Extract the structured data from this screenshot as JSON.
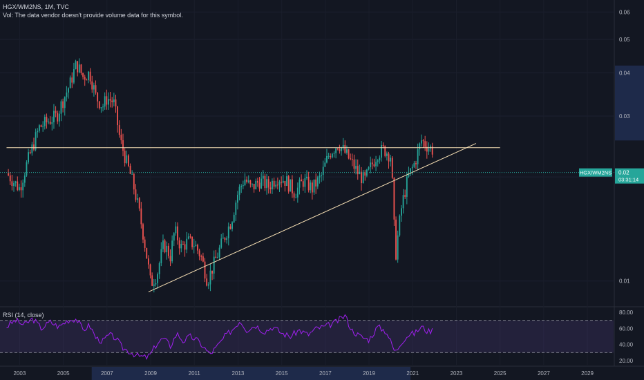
{
  "header": {
    "symbol_line": "HGX/WM2NS, 1M, TVC",
    "volume_note": "Vol: The data vendor doesn't provide volume data for this symbol."
  },
  "price_axis": {
    "labels": [
      "0.06",
      "0.05",
      "0.04",
      "0.03",
      "0.02",
      "0.01"
    ]
  },
  "last_price": {
    "symbol_tag": "HGX/WM2NS",
    "value": "0.02",
    "countdown": "03:31:14"
  },
  "rsi": {
    "label": "RSI (14, close)",
    "axis_labels": [
      "80.00",
      "60.00",
      "40.00",
      "20.00"
    ],
    "upper_band": 70,
    "lower_band": 30
  },
  "time_axis": {
    "labels": [
      "2003",
      "2005",
      "2007",
      "2009",
      "2011",
      "2013",
      "2015",
      "2017",
      "2019",
      "2021",
      "2023",
      "2025",
      "2027",
      "2029"
    ]
  },
  "colors": {
    "background": "#131722",
    "up": "#26a69a",
    "down": "#ef5350",
    "rsi_line": "#a020f0",
    "rsi_band": "#7e57c2",
    "trendline": "#f5deb3",
    "last_price_tag": "#26a69a"
  },
  "chart_data": {
    "type": "candlestick",
    "scale": "log",
    "ylim": [
      0.0085,
      0.065
    ],
    "xlim": [
      2002.1,
      2030.2
    ],
    "price_path": [
      [
        2002.4,
        0.0205
      ],
      [
        2002.7,
        0.0195
      ],
      [
        2003.0,
        0.0185
      ],
      [
        2003.3,
        0.0215
      ],
      [
        2003.6,
        0.0245
      ],
      [
        2003.9,
        0.0278
      ],
      [
        2004.3,
        0.029
      ],
      [
        2004.7,
        0.03
      ],
      [
        2005.0,
        0.0335
      ],
      [
        2005.3,
        0.037
      ],
      [
        2005.6,
        0.0425
      ],
      [
        2005.9,
        0.039
      ],
      [
        2006.2,
        0.04
      ],
      [
        2006.5,
        0.034
      ],
      [
        2006.8,
        0.032
      ],
      [
        2007.0,
        0.0338
      ],
      [
        2007.3,
        0.033
      ],
      [
        2007.6,
        0.0255
      ],
      [
        2007.9,
        0.022
      ],
      [
        2008.2,
        0.019
      ],
      [
        2008.5,
        0.0155
      ],
      [
        2008.8,
        0.012
      ],
      [
        2009.0,
        0.0098
      ],
      [
        2009.3,
        0.0105
      ],
      [
        2009.6,
        0.0128
      ],
      [
        2009.9,
        0.0118
      ],
      [
        2010.1,
        0.014
      ],
      [
        2010.4,
        0.0125
      ],
      [
        2010.7,
        0.013
      ],
      [
        2011.0,
        0.0128
      ],
      [
        2011.3,
        0.0118
      ],
      [
        2011.6,
        0.01
      ],
      [
        2011.9,
        0.0112
      ],
      [
        2012.3,
        0.013
      ],
      [
        2012.7,
        0.015
      ],
      [
        2013.0,
        0.018
      ],
      [
        2013.3,
        0.0198
      ],
      [
        2013.6,
        0.0185
      ],
      [
        2014.0,
        0.0195
      ],
      [
        2014.4,
        0.0188
      ],
      [
        2014.8,
        0.02
      ],
      [
        2015.2,
        0.0195
      ],
      [
        2015.6,
        0.018
      ],
      [
        2016.0,
        0.0195
      ],
      [
        2016.4,
        0.0185
      ],
      [
        2016.8,
        0.02
      ],
      [
        2017.2,
        0.0235
      ],
      [
        2017.6,
        0.025
      ],
      [
        2017.9,
        0.0235
      ],
      [
        2018.2,
        0.022
      ],
      [
        2018.5,
        0.0205
      ],
      [
        2018.8,
        0.0195
      ],
      [
        2019.1,
        0.0215
      ],
      [
        2019.4,
        0.0235
      ],
      [
        2019.7,
        0.024
      ],
      [
        2020.0,
        0.023
      ],
      [
        2020.2,
        0.0115
      ],
      [
        2020.5,
        0.0165
      ],
      [
        2020.8,
        0.02
      ],
      [
        2021.1,
        0.022
      ],
      [
        2021.4,
        0.0255
      ],
      [
        2021.7,
        0.0245
      ],
      [
        2021.9,
        0.024
      ]
    ],
    "horizontal_line": {
      "y": 0.0243,
      "x": [
        2002.4,
        2025.0
      ]
    },
    "trendline": {
      "start": [
        2008.9,
        0.0093
      ],
      "end": [
        2023.9,
        0.025
      ]
    },
    "rsi_path": [
      [
        2002.4,
        62
      ],
      [
        2002.8,
        70
      ],
      [
        2003.2,
        64
      ],
      [
        2003.6,
        72
      ],
      [
        2004.0,
        60
      ],
      [
        2004.4,
        68
      ],
      [
        2004.8,
        62
      ],
      [
        2005.2,
        70
      ],
      [
        2005.6,
        72
      ],
      [
        2005.9,
        58
      ],
      [
        2006.2,
        64
      ],
      [
        2006.5,
        48
      ],
      [
        2006.8,
        44
      ],
      [
        2007.1,
        52
      ],
      [
        2007.4,
        48
      ],
      [
        2007.7,
        36
      ],
      [
        2008.0,
        32
      ],
      [
        2008.4,
        26
      ],
      [
        2008.8,
        24
      ],
      [
        2009.0,
        28
      ],
      [
        2009.3,
        42
      ],
      [
        2009.6,
        48
      ],
      [
        2009.9,
        38
      ],
      [
        2010.2,
        54
      ],
      [
        2010.5,
        44
      ],
      [
        2010.8,
        50
      ],
      [
        2011.1,
        46
      ],
      [
        2011.4,
        38
      ],
      [
        2011.7,
        28
      ],
      [
        2012.0,
        36
      ],
      [
        2012.4,
        50
      ],
      [
        2012.8,
        60
      ],
      [
        2013.1,
        70
      ],
      [
        2013.4,
        58
      ],
      [
        2013.8,
        64
      ],
      [
        2014.2,
        56
      ],
      [
        2014.6,
        62
      ],
      [
        2015.0,
        54
      ],
      [
        2015.4,
        50
      ],
      [
        2015.8,
        58
      ],
      [
        2016.2,
        52
      ],
      [
        2016.6,
        60
      ],
      [
        2017.0,
        62
      ],
      [
        2017.5,
        68
      ],
      [
        2017.9,
        76
      ],
      [
        2018.2,
        58
      ],
      [
        2018.6,
        50
      ],
      [
        2019.0,
        46
      ],
      [
        2019.4,
        62
      ],
      [
        2019.8,
        56
      ],
      [
        2020.2,
        30
      ],
      [
        2020.5,
        44
      ],
      [
        2020.8,
        52
      ],
      [
        2021.1,
        54
      ],
      [
        2021.4,
        62
      ],
      [
        2021.7,
        56
      ],
      [
        2021.9,
        58
      ]
    ]
  }
}
